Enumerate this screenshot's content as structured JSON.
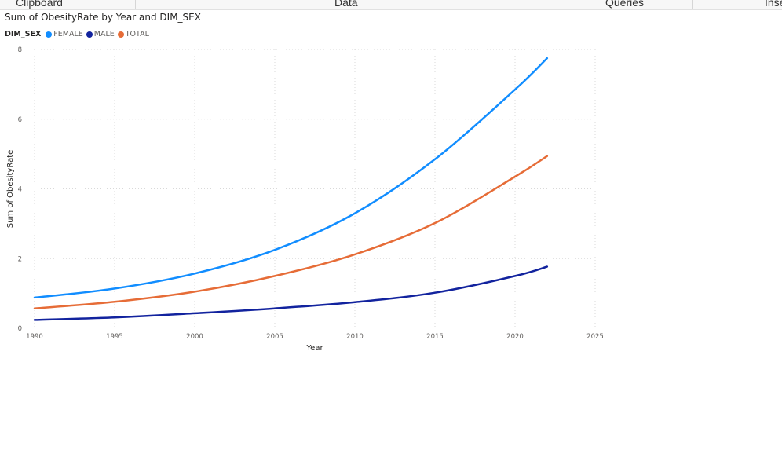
{
  "ribbon": {
    "groups": [
      "Clipboard",
      "Data",
      "Queries",
      "Inse"
    ]
  },
  "visual": {
    "title": "Sum of ObesityRate by Year and DIM_SEX",
    "legend_title": "DIM_SEX"
  },
  "chart_data": {
    "type": "line",
    "title": "Sum of ObesityRate by Year and DIM_SEX",
    "xlabel": "Year",
    "ylabel": "Sum of ObesityRate",
    "xlim": [
      1990,
      2025
    ],
    "ylim": [
      0,
      8
    ],
    "xticks": [
      1990,
      1995,
      2000,
      2005,
      2010,
      2015,
      2020,
      2025
    ],
    "yticks": [
      0,
      2,
      4,
      6,
      8
    ],
    "grid": true,
    "legend_position": "top-left",
    "x": [
      1990,
      1995,
      2000,
      2005,
      2010,
      2015,
      2020,
      2022
    ],
    "series": [
      {
        "name": "FEMALE",
        "color": "#118DFF",
        "values": [
          0.88,
          1.14,
          1.57,
          2.25,
          3.3,
          4.85,
          6.85,
          7.75
        ]
      },
      {
        "name": "MALE",
        "color": "#12239E",
        "values": [
          0.24,
          0.31,
          0.43,
          0.57,
          0.75,
          1.02,
          1.5,
          1.77
        ]
      },
      {
        "name": "TOTAL",
        "color": "#E66C37",
        "values": [
          0.57,
          0.76,
          1.05,
          1.5,
          2.12,
          3.02,
          4.35,
          4.94
        ]
      }
    ]
  }
}
